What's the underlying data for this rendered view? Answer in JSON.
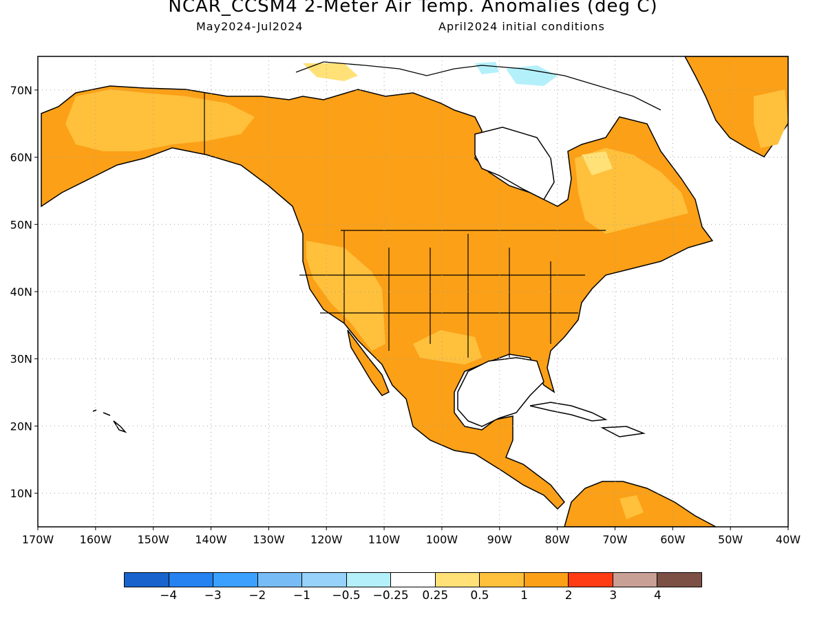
{
  "header": {
    "title": "NCAR_CCSM4 2-Meter Air Temp. Anomalies (deg C)",
    "period": "May2024-Jul2024",
    "init": "April2024 initial conditions"
  },
  "map": {
    "lon_ticks": [
      "170W",
      "160W",
      "150W",
      "140W",
      "130W",
      "120W",
      "110W",
      "100W",
      "90W",
      "80W",
      "70W",
      "60W",
      "50W",
      "40W"
    ],
    "lat_ticks": [
      "70N",
      "60N",
      "50N",
      "40N",
      "30N",
      "20N",
      "10N"
    ],
    "lon_range": [
      -170,
      -40
    ],
    "lat_range": [
      5,
      75
    ],
    "grid": "dotted",
    "land_fill_color": "#fba017",
    "ocean_color": "#ffffff"
  },
  "legend": {
    "colors": [
      "#1964cc",
      "#2582f0",
      "#3ca0ff",
      "#78bcf5",
      "#96d2fa",
      "#b4f0fa",
      "#ffffff",
      "#ffe178",
      "#ffc03c",
      "#fba017",
      "#ff3c14",
      "#c8a096",
      "#7d5046"
    ],
    "labels": [
      "−4",
      "−3",
      "−2",
      "−1",
      "−0.5",
      "−0.25",
      "0.25",
      "0.5",
      "1",
      "2",
      "3",
      "4"
    ]
  }
}
